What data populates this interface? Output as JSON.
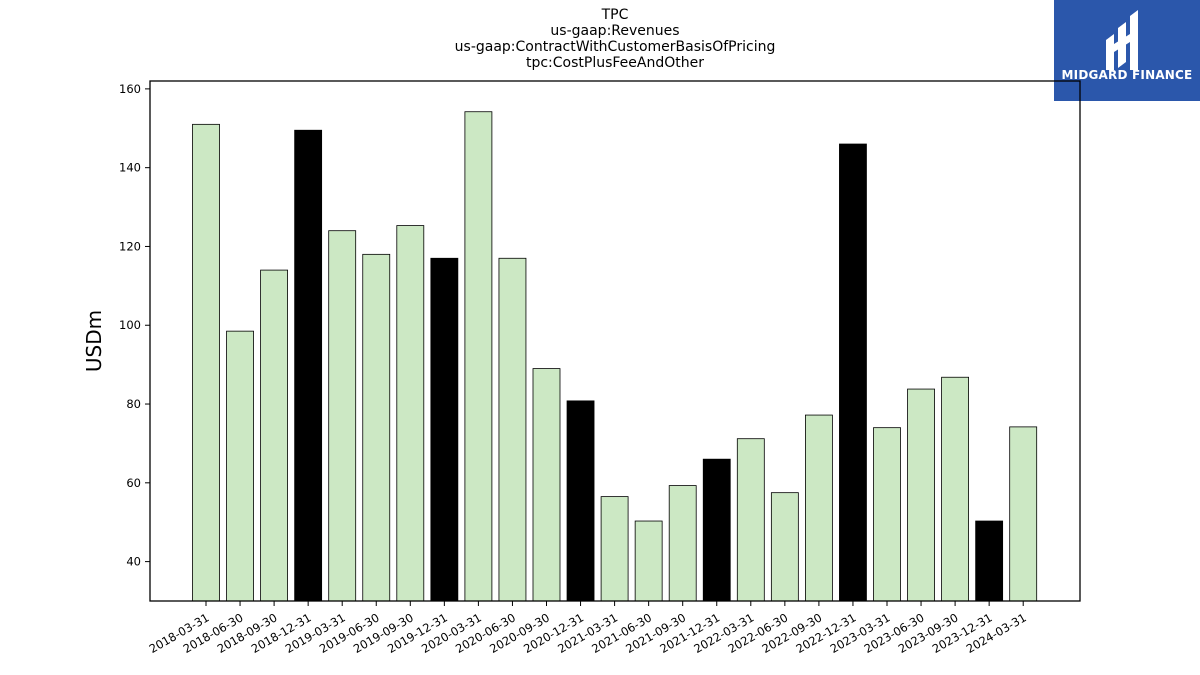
{
  "logo": {
    "text": "MIDGARD FINANCE",
    "background": "#2b57ab"
  },
  "colors": {
    "normal_bar": "#cce8c4",
    "q4_bar": "#000000",
    "edge": "#000000"
  },
  "chart_data": {
    "type": "bar",
    "title_lines": [
      "TPC",
      "us-gaap:Revenues",
      "us-gaap:ContractWithCustomerBasisOfPricing",
      "tpc:CostPlusFeeAndOther"
    ],
    "xlabel": "",
    "ylabel": "USDm",
    "ylim": [
      30,
      162
    ],
    "yticks": [
      40,
      60,
      80,
      100,
      120,
      140,
      160
    ],
    "grid": false,
    "categories": [
      "2018-03-31",
      "2018-06-30",
      "2018-09-30",
      "2018-12-31",
      "2019-03-31",
      "2019-06-30",
      "2019-09-30",
      "2019-12-31",
      "2020-03-31",
      "2020-06-30",
      "2020-09-30",
      "2020-12-31",
      "2021-03-31",
      "2021-06-30",
      "2021-09-30",
      "2021-12-31",
      "2022-03-31",
      "2022-06-30",
      "2022-09-30",
      "2022-12-31",
      "2023-03-31",
      "2023-06-30",
      "2023-09-30",
      "2023-12-31",
      "2024-03-31"
    ],
    "values": [
      151.0,
      98.5,
      114.0,
      149.5,
      124.0,
      118.0,
      125.3,
      117.0,
      154.2,
      117.0,
      89.0,
      80.8,
      56.5,
      50.3,
      59.3,
      66.0,
      71.2,
      57.5,
      77.2,
      146.0,
      74.0,
      83.8,
      86.8,
      50.3,
      74.2
    ],
    "highlight": [
      false,
      false,
      false,
      true,
      false,
      false,
      false,
      true,
      false,
      false,
      false,
      true,
      false,
      false,
      false,
      true,
      false,
      false,
      false,
      true,
      false,
      false,
      false,
      true,
      false
    ]
  }
}
